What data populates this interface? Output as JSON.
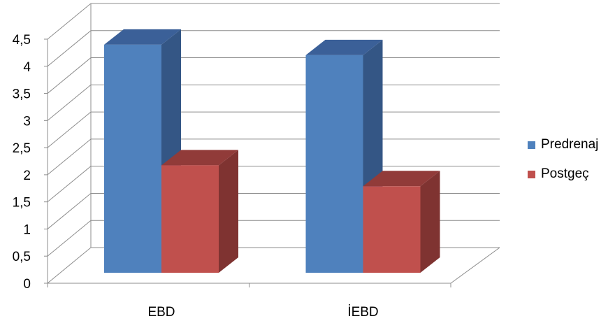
{
  "chart_data": {
    "type": "bar",
    "categories": [
      "EBD",
      "İEBD"
    ],
    "series": [
      {
        "name": "Predrenaj",
        "values": [
          4.35,
          4.15
        ],
        "color": "#4F81BD",
        "side_color": "#345685",
        "top_color": "#3B6098"
      },
      {
        "name": "Postgeç",
        "values": [
          2.05,
          1.65
        ],
        "color": "#C0504D",
        "side_color": "#7F3331",
        "top_color": "#913B39"
      }
    ],
    "yticks": [
      "0",
      "0,5",
      "1",
      "1,5",
      "2",
      "2,5",
      "3",
      "3,5",
      "4",
      "4,5"
    ],
    "ylim": [
      0,
      4.5
    ],
    "grid": true,
    "legend_position": "right",
    "title": "",
    "xlabel": "",
    "ylabel": ""
  }
}
